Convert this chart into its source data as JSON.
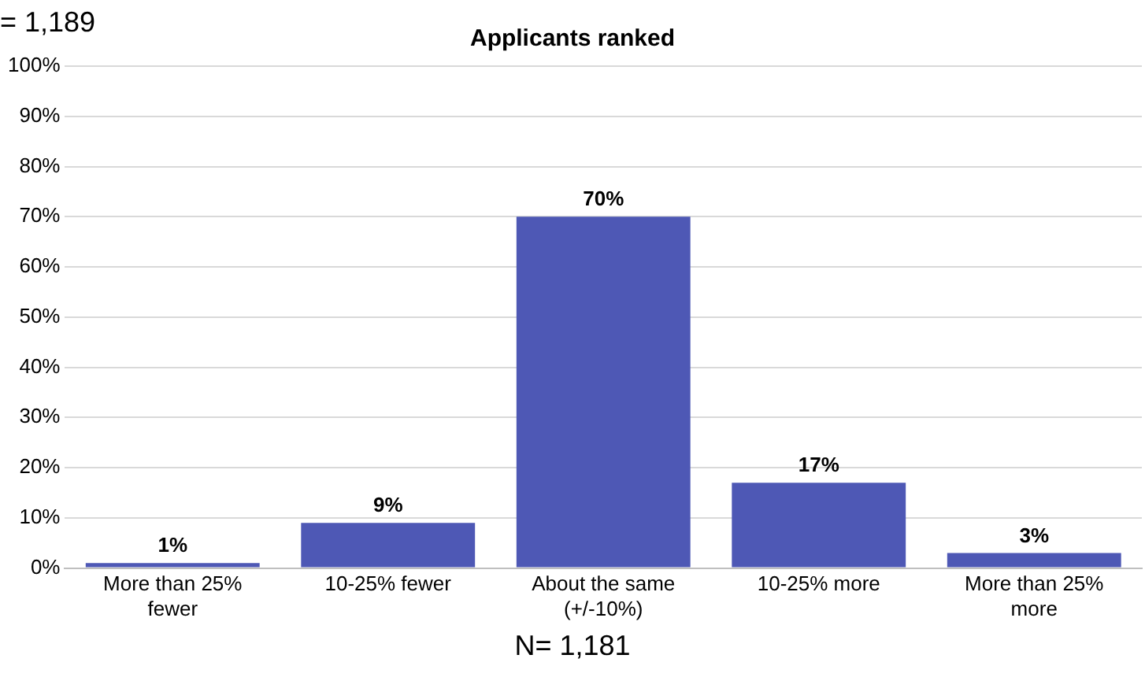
{
  "chart_data": {
    "type": "bar",
    "title": "Applicants ranked",
    "xlabel": "N= 1,181",
    "annotations": [
      "= 1,189"
    ],
    "categories": [
      "More than 25% fewer",
      "10-25% fewer",
      "About the same (+/-10%)",
      "10-25% more",
      "More than 25% more"
    ],
    "values": [
      1,
      9,
      70,
      17,
      3
    ],
    "color": "#4e58b5",
    "value_labels": [
      "1%",
      "9%",
      "70%",
      "17%",
      "3%"
    ],
    "ylim": [
      0,
      100
    ],
    "yticks": [
      {
        "value": 0,
        "label": "0%"
      },
      {
        "value": 10,
        "label": "10%"
      },
      {
        "value": 20,
        "label": "20%"
      },
      {
        "value": 30,
        "label": "30%"
      },
      {
        "value": 40,
        "label": "40%"
      },
      {
        "value": 50,
        "label": "50%"
      },
      {
        "value": 60,
        "label": "60%"
      },
      {
        "value": 70,
        "label": "70%"
      },
      {
        "value": 80,
        "label": "80%"
      },
      {
        "value": 90,
        "label": "90%"
      },
      {
        "value": 100,
        "label": "100%"
      }
    ],
    "grid": "y"
  }
}
